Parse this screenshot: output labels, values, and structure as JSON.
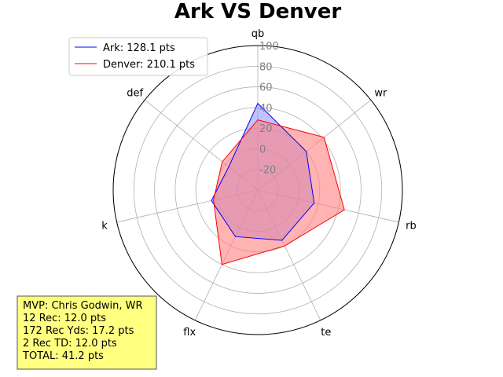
{
  "chart_data": {
    "type": "radar",
    "title": "Ark VS Denver",
    "axes": [
      "qb",
      "wr",
      "rb",
      "te",
      "flx",
      "k",
      "def"
    ],
    "r_ticks": [
      -20,
      0,
      20,
      40,
      60,
      80,
      100
    ],
    "r_range": [
      -40,
      100
    ],
    "grid": true,
    "legend_position": "top-left",
    "series": [
      {
        "name": "Ark: 128.1 pts",
        "values": [
          44,
          20,
          16,
          14,
          10,
          6,
          -4
        ],
        "color": "#0000ff",
        "fill": "#9999ff"
      },
      {
        "name": "Denver: 210.1 pts",
        "values": [
          28,
          42,
          46,
          20,
          40,
          4,
          4
        ],
        "color": "#ff0000",
        "fill": "#ff8080"
      }
    ]
  },
  "mvp_box": {
    "lines": [
      "MVP: Chris Godwin, WR",
      "12 Rec: 12.0 pts",
      "172 Rec Yds: 17.2 pts",
      "2 Rec TD: 12.0 pts",
      "TOTAL: 41.2 pts"
    ],
    "background": "#ffff80"
  }
}
